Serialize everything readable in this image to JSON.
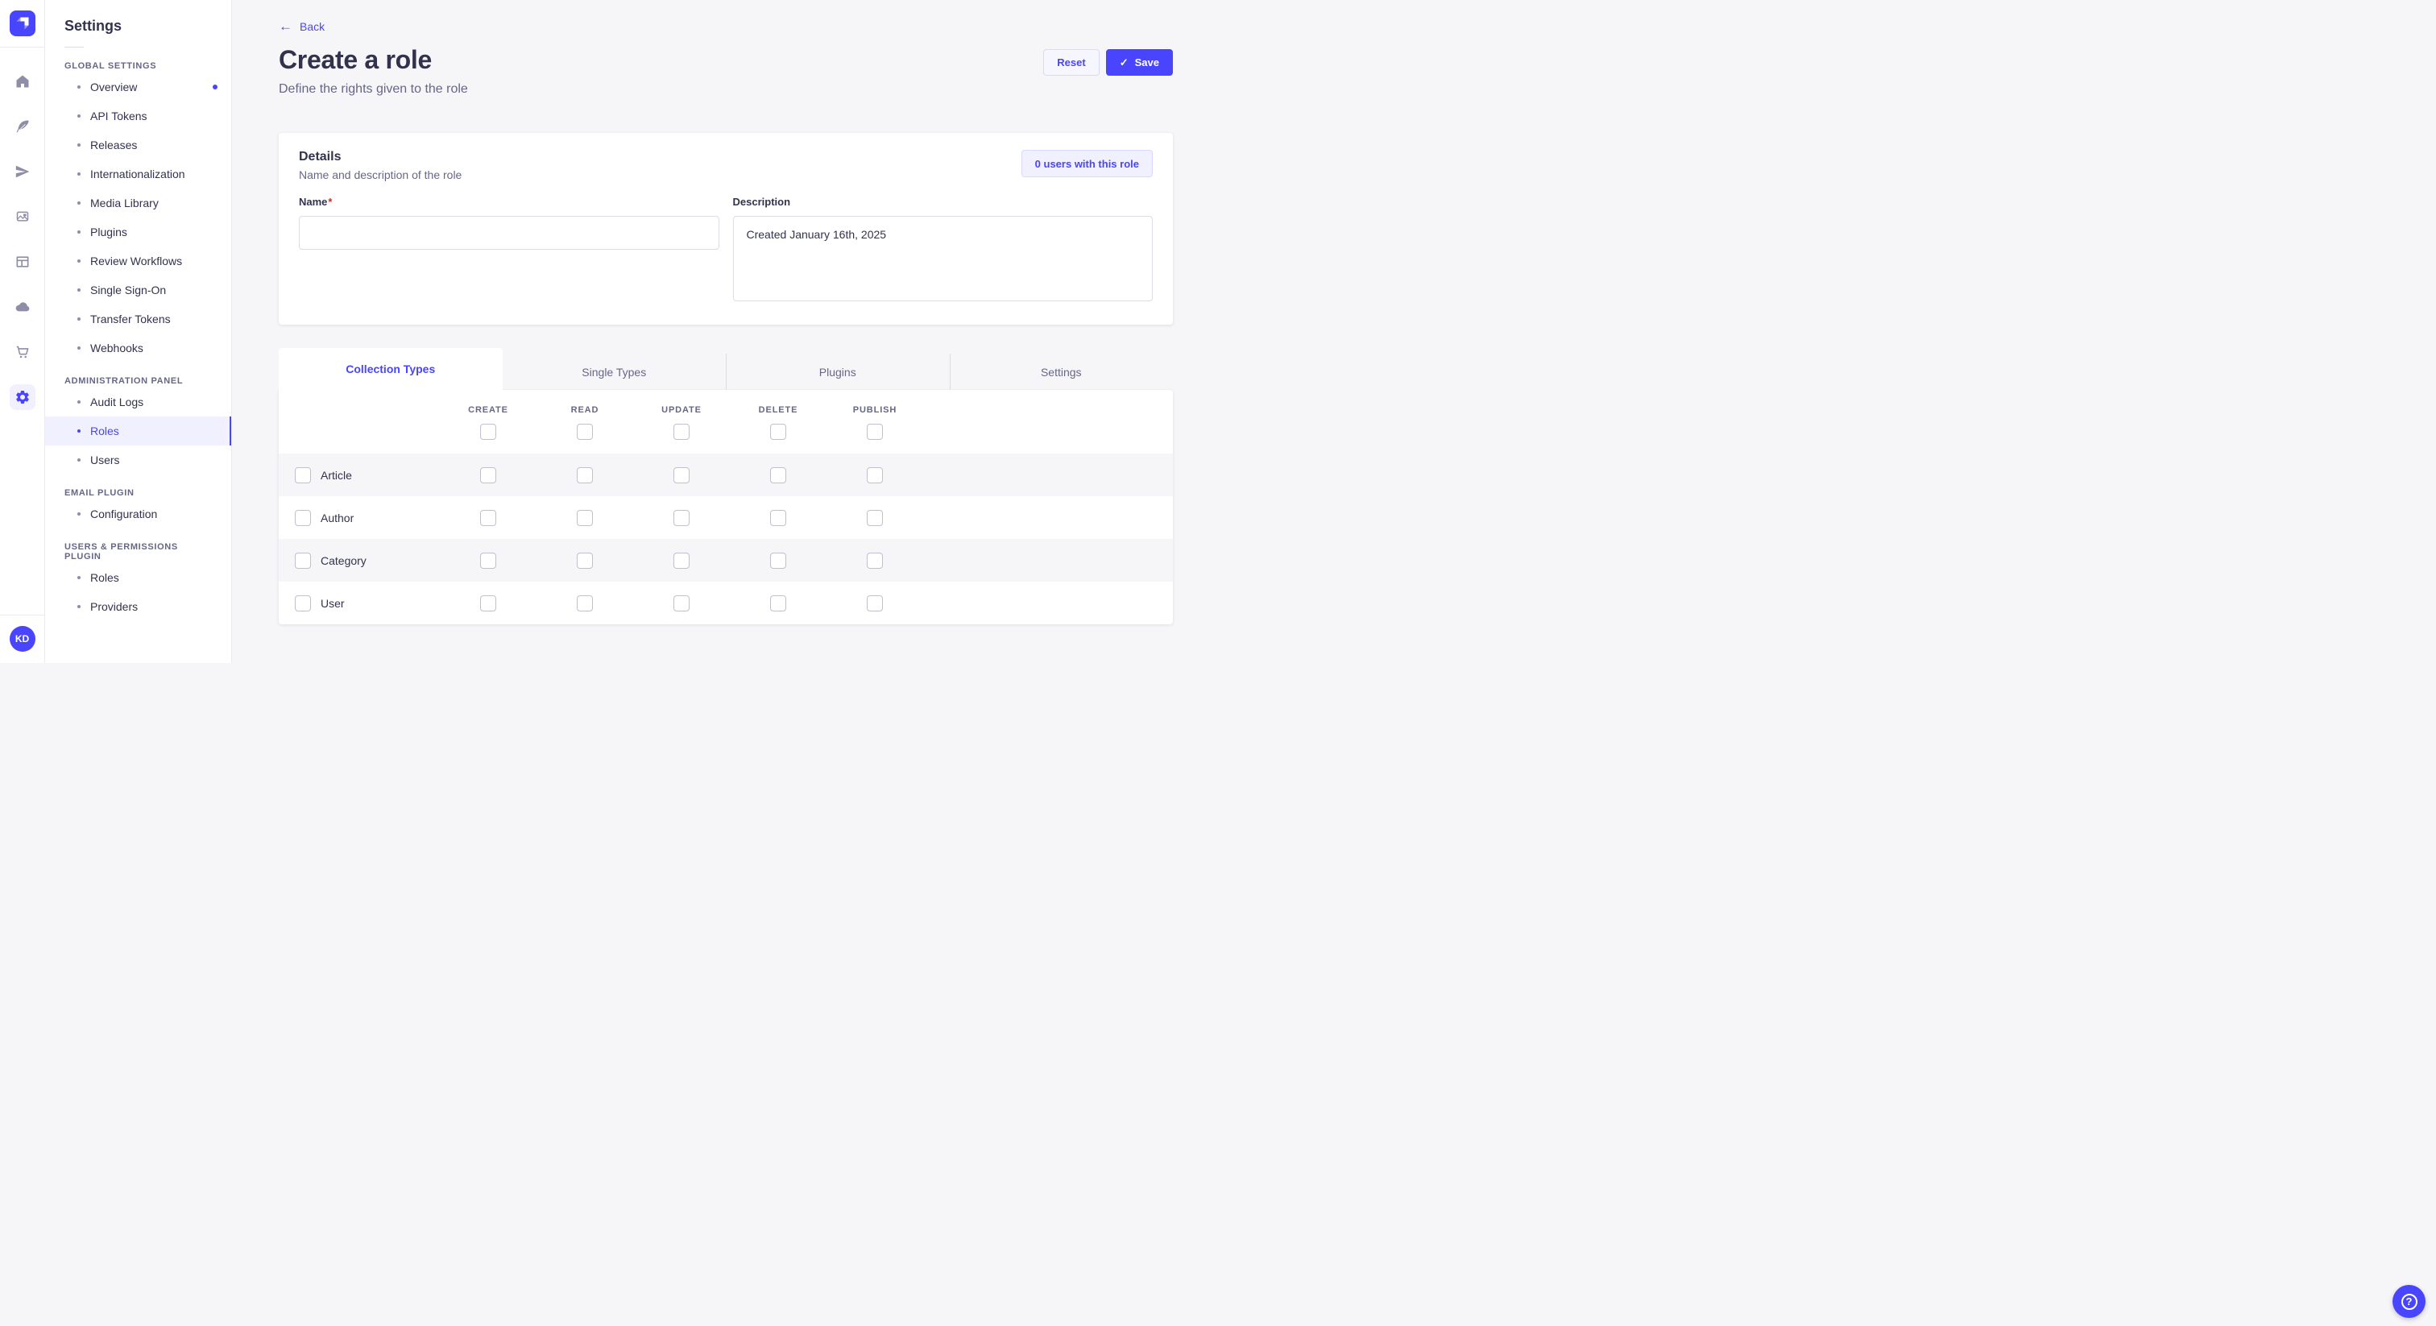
{
  "app": {
    "brand_color": "#4945ff",
    "icons": {
      "back_arrow": "←",
      "check": "✓",
      "question_mark": "?"
    }
  },
  "iconbar": {
    "items": [
      {
        "name": "home",
        "active": false
      },
      {
        "name": "content-manager",
        "active": false
      },
      {
        "name": "releases",
        "active": false
      },
      {
        "name": "media-library",
        "active": false
      },
      {
        "name": "content-type-builder",
        "active": false
      },
      {
        "name": "deploy",
        "active": false
      },
      {
        "name": "marketplace",
        "active": false
      },
      {
        "name": "settings",
        "active": true
      }
    ],
    "avatar_initials": "KD"
  },
  "settings_nav": {
    "title": "Settings",
    "sections": [
      {
        "label": "GLOBAL SETTINGS",
        "items": [
          {
            "label": "Overview",
            "notification": true
          },
          {
            "label": "API Tokens"
          },
          {
            "label": "Releases"
          },
          {
            "label": "Internationalization"
          },
          {
            "label": "Media Library"
          },
          {
            "label": "Plugins"
          },
          {
            "label": "Review Workflows"
          },
          {
            "label": "Single Sign-On"
          },
          {
            "label": "Transfer Tokens"
          },
          {
            "label": "Webhooks"
          }
        ]
      },
      {
        "label": "ADMINISTRATION PANEL",
        "items": [
          {
            "label": "Audit Logs"
          },
          {
            "label": "Roles",
            "active": true
          },
          {
            "label": "Users"
          }
        ]
      },
      {
        "label": "EMAIL PLUGIN",
        "items": [
          {
            "label": "Configuration"
          }
        ]
      },
      {
        "label": "USERS & PERMISSIONS PLUGIN",
        "items": [
          {
            "label": "Roles"
          },
          {
            "label": "Providers"
          }
        ]
      }
    ]
  },
  "header": {
    "back_label": "Back",
    "title": "Create a role",
    "subtitle": "Define the rights given to the role",
    "reset_label": "Reset",
    "save_label": "Save"
  },
  "details_card": {
    "title": "Details",
    "subtitle": "Name and description of the role",
    "users_button_label": "0 users with this role",
    "name_label": "Name",
    "name_required_mark": "*",
    "name_value": "",
    "description_label": "Description",
    "description_value": "Created January 16th, 2025"
  },
  "permissions": {
    "tabs": [
      {
        "label": "Collection Types",
        "active": true
      },
      {
        "label": "Single Types",
        "active": false
      },
      {
        "label": "Plugins",
        "active": false
      },
      {
        "label": "Settings",
        "active": false
      }
    ],
    "columns": [
      "CREATE",
      "READ",
      "UPDATE",
      "DELETE",
      "PUBLISH"
    ],
    "select_all_checked": [
      false,
      false,
      false,
      false,
      false
    ],
    "rows": [
      {
        "label": "Article",
        "row_checked": false,
        "checks": [
          false,
          false,
          false,
          false,
          false
        ]
      },
      {
        "label": "Author",
        "row_checked": false,
        "checks": [
          false,
          false,
          false,
          false,
          false
        ]
      },
      {
        "label": "Category",
        "row_checked": false,
        "checks": [
          false,
          false,
          false,
          false,
          false
        ]
      },
      {
        "label": "User",
        "row_checked": false,
        "checks": [
          false,
          false,
          false,
          false,
          false
        ]
      }
    ]
  }
}
